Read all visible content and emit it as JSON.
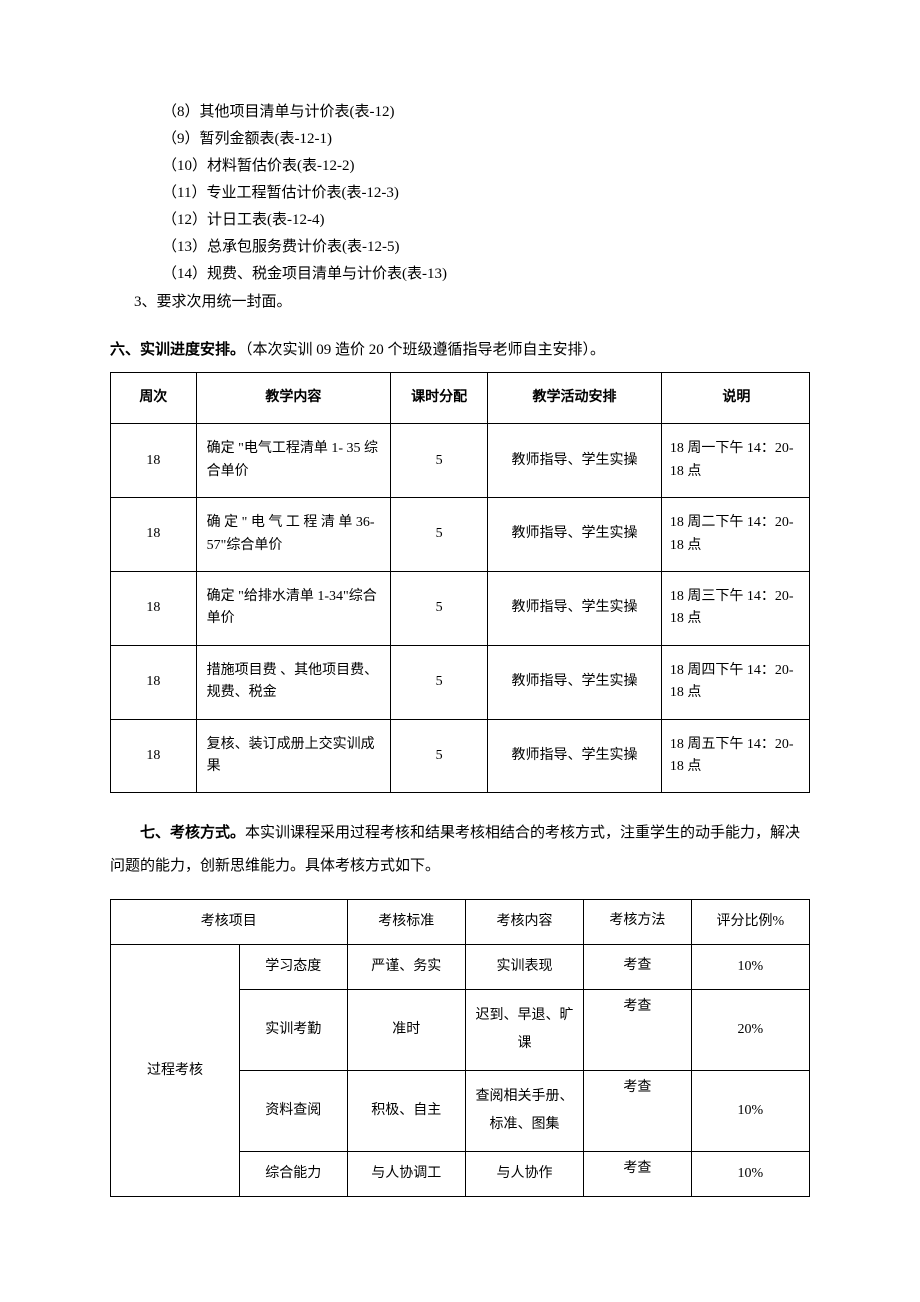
{
  "list": {
    "items": [
      "（8）其他项目清单与计价表(表-12)",
      "（9）暂列金额表(表-12-1)",
      "（10）材料暂估价表(表-12-2)",
      "（11）专业工程暂估计价表(表-12-3)",
      "（12）计日工表(表-12-4)",
      "（13）总承包服务费计价表(表-12-5)",
      "（14）规费、税金项目清单与计价表(表-13)"
    ],
    "note": "3、要求次用统一封面。"
  },
  "section6": {
    "label": "六、实训进度安排。",
    "after": "（本次实训 09 造价 20 个班级遵循指导老师自主安排）。",
    "headers": [
      "周次",
      "教学内容",
      "课时分配",
      "教学活动安排",
      "说明"
    ],
    "rows": [
      {
        "week": "18",
        "content": "确定 \"电气工程清单 1- 35 综合单价",
        "hours": "5",
        "activity": "教师指导、学生实操",
        "note": "18 周一下午 14：20-18 点"
      },
      {
        "week": "18",
        "content": "确 定 \" 电 气 工 程 清 单 36-57\"综合单价",
        "hours": "5",
        "activity": "教师指导、学生实操",
        "note": "18 周二下午 14：20-18 点"
      },
      {
        "week": "18",
        "content": "确定 \"给排水清单 1-34\"综合单价",
        "hours": "5",
        "activity": "教师指导、学生实操",
        "note": "18 周三下午 14：20-18 点"
      },
      {
        "week": "18",
        "content": "措施项目费 、其他项目费、规费、税金",
        "hours": "5",
        "activity": "教师指导、学生实操",
        "note": "18 周四下午 14：20-18 点"
      },
      {
        "week": "18",
        "content": "复核、装订成册上交实训成果",
        "hours": "5",
        "activity": "教师指导、学生实操",
        "note": "18 周五下午 14：20-18 点"
      }
    ]
  },
  "section7": {
    "label": "七、考核方式。",
    "after": "本实训课程采用过程考核和结果考核相结合的考核方式，注重学生的动手能力，解决问题的能力，创新思维能力。具体考核方式如下。",
    "headers": {
      "project": "考核项目",
      "standard": "考核标准",
      "content": "考核内容",
      "method": "考核方法",
      "percent": "评分比例%"
    },
    "group_label": "过程考核",
    "rows": [
      {
        "sub": "学习态度",
        "standard": "严谨、务实",
        "content": "实训表现",
        "method": "考查",
        "percent": "10%"
      },
      {
        "sub": "实训考勤",
        "standard": "准时",
        "content": "迟到、早退、旷课",
        "method": "考查",
        "percent": "20%"
      },
      {
        "sub": "资料查阅",
        "standard": "积极、自主",
        "content": "查阅相关手册、标准、图集",
        "method": "考查",
        "percent": "10%"
      },
      {
        "sub": "综合能力",
        "standard": "与人协调工",
        "content": "与人协作",
        "method": "考查",
        "percent": "10%"
      }
    ]
  }
}
